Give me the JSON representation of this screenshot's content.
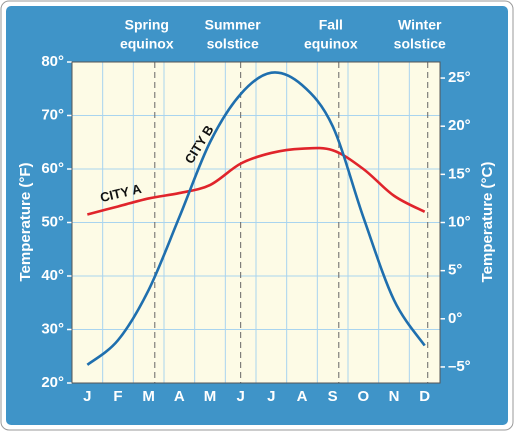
{
  "chart_data": {
    "type": "line",
    "categories": [
      "J",
      "F",
      "M",
      "A",
      "M",
      "J",
      "J",
      "A",
      "S",
      "O",
      "N",
      "D"
    ],
    "series": [
      {
        "name": "CITY A",
        "color": "#e0242b",
        "values": [
          51.5,
          53,
          54.5,
          55.5,
          57,
          61,
          63,
          63.8,
          63.5,
          60,
          55,
          52
        ]
      },
      {
        "name": "CITY B",
        "color": "#1f6fae",
        "values": [
          23.4,
          28,
          37.4,
          51,
          65,
          74,
          78,
          75.7,
          68,
          51,
          35.5,
          27
        ]
      }
    ],
    "ylabel": "Temperature (°F)",
    "y2label": "Temperature (°C)",
    "ylim": [
      20,
      80
    ],
    "yticks": [
      {
        "value": 20,
        "label": "20°"
      },
      {
        "value": 30,
        "label": "30°"
      },
      {
        "value": 40,
        "label": "40°"
      },
      {
        "value": 50,
        "label": "50°"
      },
      {
        "value": 60,
        "label": "60°"
      },
      {
        "value": 70,
        "label": "70°"
      },
      {
        "value": 80,
        "label": "80°"
      }
    ],
    "y2lim": [
      -6.667,
      26.667
    ],
    "y2ticks": [
      {
        "value": -5,
        "label": "–5°"
      },
      {
        "value": 0,
        "label": "0°"
      },
      {
        "value": 5,
        "label": "5°"
      },
      {
        "value": 10,
        "label": "10°"
      },
      {
        "value": 15,
        "label": "15°"
      },
      {
        "value": 20,
        "label": "20°"
      },
      {
        "value": 25,
        "label": "25°"
      }
    ],
    "grid": true,
    "markers": [
      {
        "lines": [
          "Spring",
          "equinox"
        ],
        "x": 2.7
      },
      {
        "lines": [
          "Summer",
          "solstice"
        ],
        "x": 5.5
      },
      {
        "lines": [
          "Fall",
          "equinox"
        ],
        "x": 8.7
      },
      {
        "lines": [
          "Winter",
          "solstice"
        ],
        "x": 11.6
      }
    ]
  }
}
